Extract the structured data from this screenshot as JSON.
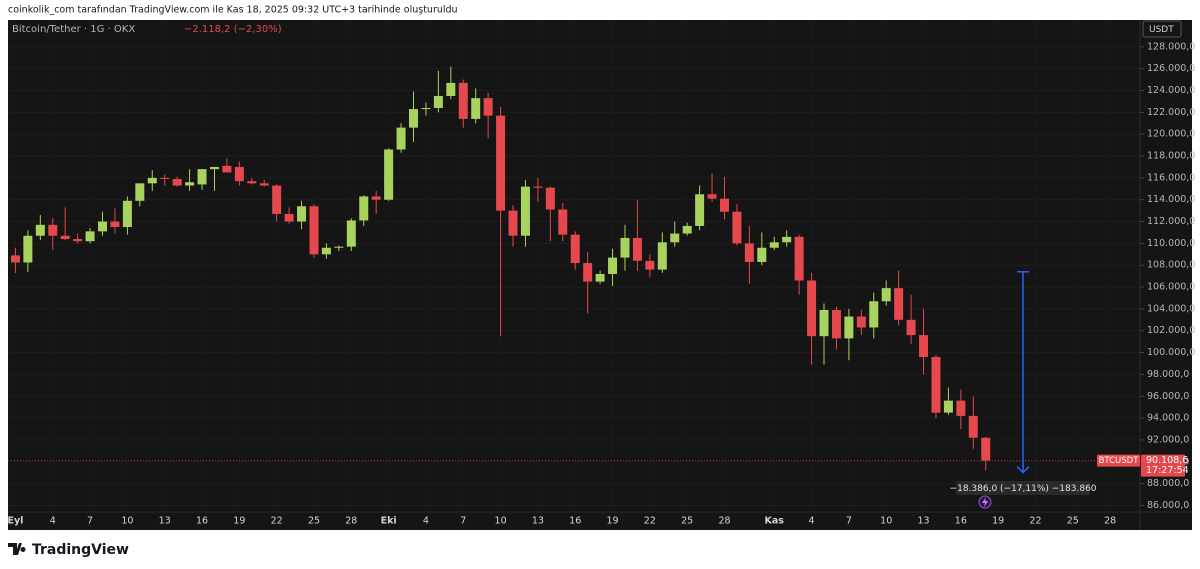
{
  "page": {
    "header": "coinkolik_com tarafından TradingView.com ile Kas 18, 2025 09:32 UTC+3 tarihinde oluşturuldu",
    "logo": "TradingView"
  },
  "chart_data": {
    "type": "candlestick",
    "title": "Bitcoin/Tether · 1G · OKX",
    "change": "−2.118,2 (−2,30%)",
    "currency": "USDT",
    "up_color": "#a8d35e",
    "down_color": "#e5484d",
    "grid": true,
    "x": [
      "2025-09-01",
      "2025-09-02",
      "2025-09-03",
      "2025-09-04",
      "2025-09-05",
      "2025-09-06",
      "2025-09-07",
      "2025-09-08",
      "2025-09-09",
      "2025-09-10",
      "2025-09-11",
      "2025-09-12",
      "2025-09-13",
      "2025-09-14",
      "2025-09-15",
      "2025-09-16",
      "2025-09-17",
      "2025-09-18",
      "2025-09-19",
      "2025-09-20",
      "2025-09-21",
      "2025-09-22",
      "2025-09-23",
      "2025-09-24",
      "2025-09-25",
      "2025-09-26",
      "2025-09-27",
      "2025-09-28",
      "2025-09-29",
      "2025-09-30",
      "2025-10-01",
      "2025-10-02",
      "2025-10-03",
      "2025-10-04",
      "2025-10-05",
      "2025-10-06",
      "2025-10-07",
      "2025-10-08",
      "2025-10-09",
      "2025-10-10",
      "2025-10-11",
      "2025-10-12",
      "2025-10-13",
      "2025-10-14",
      "2025-10-15",
      "2025-10-16",
      "2025-10-17",
      "2025-10-18",
      "2025-10-19",
      "2025-10-20",
      "2025-10-21",
      "2025-10-22",
      "2025-10-23",
      "2025-10-24",
      "2025-10-25",
      "2025-10-26",
      "2025-10-27",
      "2025-10-28",
      "2025-10-29",
      "2025-10-30",
      "2025-10-31",
      "2025-11-01",
      "2025-11-02",
      "2025-11-03",
      "2025-11-04",
      "2025-11-05",
      "2025-11-06",
      "2025-11-07",
      "2025-11-08",
      "2025-11-09",
      "2025-11-10",
      "2025-11-11",
      "2025-11-12",
      "2025-11-13",
      "2025-11-14",
      "2025-11-15",
      "2025-11-16",
      "2025-11-17",
      "2025-11-18"
    ],
    "open": [
      108900,
      108250,
      110700,
      111700,
      110700,
      110400,
      110200,
      111100,
      112000,
      111500,
      113900,
      115500,
      116000,
      115900,
      115300,
      115400,
      116800,
      117100,
      117000,
      115700,
      115500,
      115300,
      112700,
      112000,
      113400,
      109000,
      109600,
      109700,
      112100,
      114300,
      114000,
      118600,
      120600,
      122300,
      122400,
      123500,
      124700,
      121400,
      123300,
      121700,
      113000,
      110700,
      115200,
      115100,
      113100,
      110800,
      108200,
      106500,
      107200,
      108700,
      110500,
      108400,
      107600,
      110100,
      110900,
      111600,
      114500,
      114100,
      112900,
      110000,
      108300,
      109600,
      110100,
      110600,
      106600,
      101500,
      103900,
      101300,
      103300,
      102300,
      104700,
      105900,
      103000,
      101600,
      99600,
      94500,
      95600,
      94200,
      92200
    ],
    "high": [
      109600,
      111200,
      112600,
      112300,
      113300,
      110900,
      111400,
      112900,
      113200,
      114300,
      115500,
      116700,
      116300,
      116100,
      116800,
      116800,
      117000,
      117800,
      117500,
      116000,
      115800,
      115400,
      113300,
      113900,
      113600,
      110000,
      109800,
      112300,
      114400,
      114800,
      118700,
      121000,
      123900,
      122900,
      125800,
      126200,
      125000,
      124200,
      123800,
      122500,
      113500,
      115800,
      116000,
      115200,
      113700,
      111100,
      109200,
      107500,
      109500,
      111700,
      114000,
      109000,
      111000,
      112000,
      111900,
      115300,
      116400,
      116100,
      113600,
      111600,
      111000,
      110600,
      111200,
      110800,
      107300,
      104500,
      104200,
      104000,
      103900,
      105500,
      106600,
      107500,
      105300,
      104000,
      99800,
      96800,
      96600,
      96000,
      92300
    ],
    "low": [
      107300,
      107400,
      110300,
      109400,
      110300,
      110000,
      110000,
      110700,
      110900,
      110800,
      113400,
      114800,
      115300,
      115200,
      114800,
      114900,
      114800,
      116800,
      115300,
      115400,
      115200,
      112000,
      111800,
      111300,
      108700,
      108600,
      109300,
      109300,
      111600,
      112700,
      113900,
      118300,
      119300,
      121700,
      122000,
      123200,
      120600,
      121000,
      119600,
      101500,
      109700,
      109700,
      113800,
      110200,
      110200,
      107600,
      103600,
      106300,
      106100,
      107500,
      107500,
      106900,
      107300,
      109700,
      110700,
      111200,
      113800,
      112200,
      109800,
      106300,
      108000,
      109400,
      109700,
      105300,
      98900,
      98900,
      100300,
      99300,
      101600,
      101300,
      104300,
      102500,
      100800,
      98000,
      94000,
      94300,
      93000,
      91200,
      89200
    ],
    "close": [
      108250,
      110700,
      111700,
      110700,
      110400,
      110200,
      111100,
      112000,
      111500,
      113900,
      115500,
      116000,
      115900,
      115300,
      115600,
      116800,
      117000,
      116500,
      115700,
      115500,
      115300,
      112700,
      112000,
      113400,
      109000,
      109600,
      109700,
      112100,
      114300,
      114000,
      118600,
      120600,
      122300,
      122400,
      123500,
      124700,
      121400,
      123300,
      121700,
      113000,
      110700,
      115200,
      115100,
      113100,
      110800,
      108200,
      106500,
      107200,
      108700,
      110500,
      108400,
      107600,
      110100,
      110900,
      111600,
      114500,
      114100,
      112900,
      110000,
      108300,
      109600,
      110100,
      110600,
      106600,
      101500,
      103900,
      101300,
      103300,
      102300,
      104700,
      105900,
      103000,
      101600,
      99600,
      94500,
      95600,
      94200,
      92200,
      90108.6
    ],
    "xlim": [
      "2025-08-31",
      "2025-11-30"
    ],
    "xticks": [
      {
        "value": "2025-09-01",
        "label": "Eyl"
      },
      {
        "value": "2025-09-04",
        "label": "4"
      },
      {
        "value": "2025-09-07",
        "label": "7"
      },
      {
        "value": "2025-09-10",
        "label": "10"
      },
      {
        "value": "2025-09-13",
        "label": "13"
      },
      {
        "value": "2025-09-16",
        "label": "16"
      },
      {
        "value": "2025-09-19",
        "label": "19"
      },
      {
        "value": "2025-09-22",
        "label": "22"
      },
      {
        "value": "2025-09-25",
        "label": "25"
      },
      {
        "value": "2025-09-28",
        "label": "28"
      },
      {
        "value": "2025-10-01",
        "label": "Eki"
      },
      {
        "value": "2025-10-04",
        "label": "4"
      },
      {
        "value": "2025-10-07",
        "label": "7"
      },
      {
        "value": "2025-10-10",
        "label": "10"
      },
      {
        "value": "2025-10-13",
        "label": "13"
      },
      {
        "value": "2025-10-16",
        "label": "16"
      },
      {
        "value": "2025-10-19",
        "label": "19"
      },
      {
        "value": "2025-10-22",
        "label": "22"
      },
      {
        "value": "2025-10-25",
        "label": "25"
      },
      {
        "value": "2025-10-28",
        "label": "28"
      },
      {
        "value": "2025-11-01",
        "label": "Kas"
      },
      {
        "value": "2025-11-04",
        "label": "4"
      },
      {
        "value": "2025-11-07",
        "label": "7"
      },
      {
        "value": "2025-11-10",
        "label": "10"
      },
      {
        "value": "2025-11-13",
        "label": "13"
      },
      {
        "value": "2025-11-16",
        "label": "16"
      },
      {
        "value": "2025-11-19",
        "label": "19"
      },
      {
        "value": "2025-11-22",
        "label": "22"
      },
      {
        "value": "2025-11-25",
        "label": "25"
      },
      {
        "value": "2025-11-28",
        "label": "28"
      }
    ],
    "ylim": [
      85400,
      130000
    ],
    "yticks": [
      {
        "value": 86000,
        "label": "86.000,0"
      },
      {
        "value": 88000,
        "label": "88.000,0"
      },
      {
        "value": 90000,
        "label": "90.000,0"
      },
      {
        "value": 92000,
        "label": "92.000,0"
      },
      {
        "value": 94000,
        "label": "94.000,0"
      },
      {
        "value": 96000,
        "label": "96.000,0"
      },
      {
        "value": 98000,
        "label": "98.000,0"
      },
      {
        "value": 100000,
        "label": "100.000,0"
      },
      {
        "value": 102000,
        "label": "102.000,0"
      },
      {
        "value": 104000,
        "label": "104.000,0"
      },
      {
        "value": 106000,
        "label": "106.000,0"
      },
      {
        "value": 108000,
        "label": "108.000,0"
      },
      {
        "value": 110000,
        "label": "110.000,0"
      },
      {
        "value": 112000,
        "label": "112.000,0"
      },
      {
        "value": 114000,
        "label": "114.000,0"
      },
      {
        "value": 116000,
        "label": "116.000,0"
      },
      {
        "value": 118000,
        "label": "118.000,0"
      },
      {
        "value": 120000,
        "label": "120.000,0"
      },
      {
        "value": 122000,
        "label": "122.000,0"
      },
      {
        "value": 124000,
        "label": "124.000,0"
      },
      {
        "value": 126000,
        "label": "126.000,0"
      },
      {
        "value": 128000,
        "label": "128.000,0"
      }
    ],
    "last_price": {
      "symbol": "BTCUSDT",
      "price": {
        "value": 90108.6,
        "label": "90.108,6"
      },
      "countdown": "17:27:54"
    },
    "measure": {
      "date": "2025-11-21",
      "from": 107400,
      "to": 89014,
      "label": "−18.386,0 (−17,11%) −183.860",
      "color": "#2962ff"
    }
  }
}
